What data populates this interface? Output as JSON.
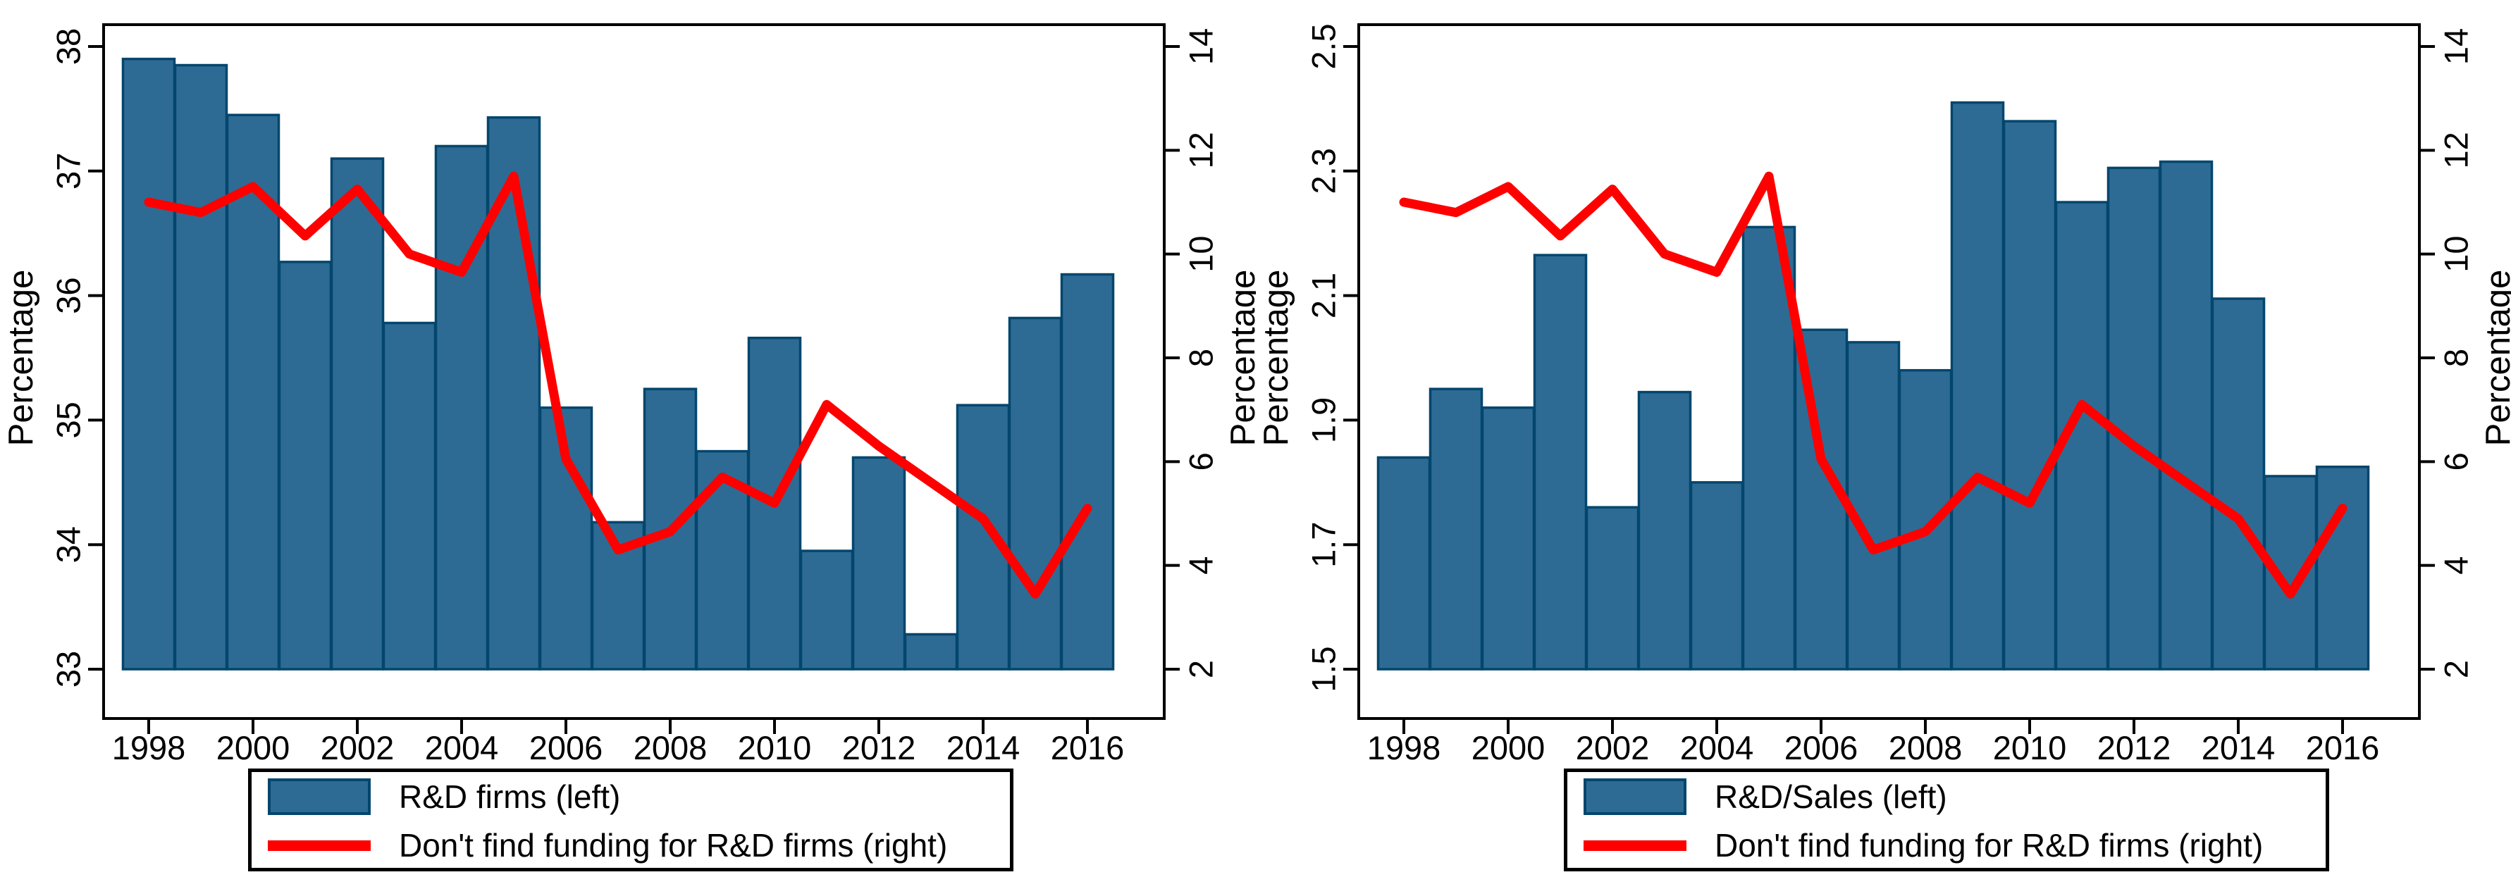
{
  "page": {
    "background": "#ffffff"
  },
  "colors": {
    "bar_fill": "#2d6b94",
    "bar_stroke": "#03466d",
    "line": "#ff0000",
    "axis": "#000000",
    "text": "#000000",
    "legend_border": "#000000"
  },
  "chart_data": [
    {
      "type": "bar+line",
      "panel": "left",
      "title": "",
      "x": [
        1998,
        1999,
        2000,
        2001,
        2002,
        2003,
        2004,
        2005,
        2006,
        2007,
        2008,
        2009,
        2010,
        2011,
        2012,
        2013,
        2014,
        2015,
        2016
      ],
      "x_ticks": [
        "1998",
        "2000",
        "2002",
        "2004",
        "2006",
        "2008",
        "2010",
        "2012",
        "2014",
        "2016"
      ],
      "left_axis": {
        "label": "Percentage",
        "min": 33,
        "max": 38,
        "ticks": [
          "33",
          "34",
          "35",
          "36",
          "37",
          "38"
        ]
      },
      "right_axis": {
        "label": "Percentage",
        "min": 2,
        "max": 14,
        "ticks": [
          "2",
          "4",
          "6",
          "8",
          "10",
          "12",
          "14"
        ]
      },
      "grid": false,
      "legend_position": "bottom",
      "series": [
        {
          "name": "R&D firms (left)",
          "type": "bar",
          "axis": "left",
          "values": [
            37.9,
            37.85,
            37.45,
            36.27,
            37.1,
            35.78,
            37.2,
            37.43,
            35.1,
            34.18,
            35.25,
            34.75,
            35.66,
            33.95,
            34.7,
            33.28,
            35.12,
            35.82,
            36.17
          ]
        },
        {
          "name": "Don't find funding for R&D firms (right)",
          "type": "line",
          "axis": "right",
          "values": [
            11.0,
            10.8,
            11.3,
            10.35,
            11.25,
            10.0,
            9.65,
            11.5,
            6.05,
            4.3,
            4.65,
            5.7,
            5.2,
            7.1,
            6.3,
            5.6,
            4.9,
            3.45,
            5.1
          ]
        }
      ],
      "legend": {
        "items": [
          {
            "label": "R&D firms (left)",
            "swatch": "bar"
          },
          {
            "label": "Don't find funding for R&D firms (right)",
            "swatch": "line"
          }
        ]
      }
    },
    {
      "type": "bar+line",
      "panel": "right",
      "title": "",
      "x": [
        1998,
        1999,
        2000,
        2001,
        2002,
        2003,
        2004,
        2005,
        2006,
        2007,
        2008,
        2009,
        2010,
        2011,
        2012,
        2013,
        2014,
        2015,
        2016
      ],
      "x_ticks": [
        "1998",
        "2000",
        "2002",
        "2004",
        "2006",
        "2008",
        "2010",
        "2012",
        "2014",
        "2016"
      ],
      "left_axis": {
        "label": "Percentage",
        "min": 1.5,
        "max": 2.5,
        "ticks": [
          "1.5",
          "1.7",
          "1.9",
          "2.1",
          "2.3",
          "2.5"
        ]
      },
      "right_axis": {
        "label": "Percentage",
        "min": 2,
        "max": 14,
        "ticks": [
          "2",
          "4",
          "6",
          "8",
          "10",
          "12",
          "14"
        ]
      },
      "grid": false,
      "legend_position": "bottom",
      "series": [
        {
          "name": "R&D/Sales (left)",
          "type": "bar",
          "axis": "left",
          "values": [
            1.84,
            1.95,
            1.92,
            2.165,
            1.76,
            1.945,
            1.8,
            2.21,
            2.045,
            2.025,
            1.98,
            2.41,
            2.38,
            2.25,
            2.305,
            2.315,
            2.095,
            1.81,
            1.825
          ]
        },
        {
          "name": "Don't find funding for R&D firms (right)",
          "type": "line",
          "axis": "right",
          "values": [
            11.0,
            10.8,
            11.3,
            10.35,
            11.25,
            10.0,
            9.65,
            11.5,
            6.05,
            4.3,
            4.65,
            5.7,
            5.2,
            7.1,
            6.3,
            5.6,
            4.9,
            3.45,
            5.1
          ]
        }
      ],
      "legend": {
        "items": [
          {
            "label": "R&D/Sales (left)",
            "swatch": "bar"
          },
          {
            "label": "Don't find funding for R&D firms (right)",
            "swatch": "line"
          }
        ]
      }
    }
  ]
}
